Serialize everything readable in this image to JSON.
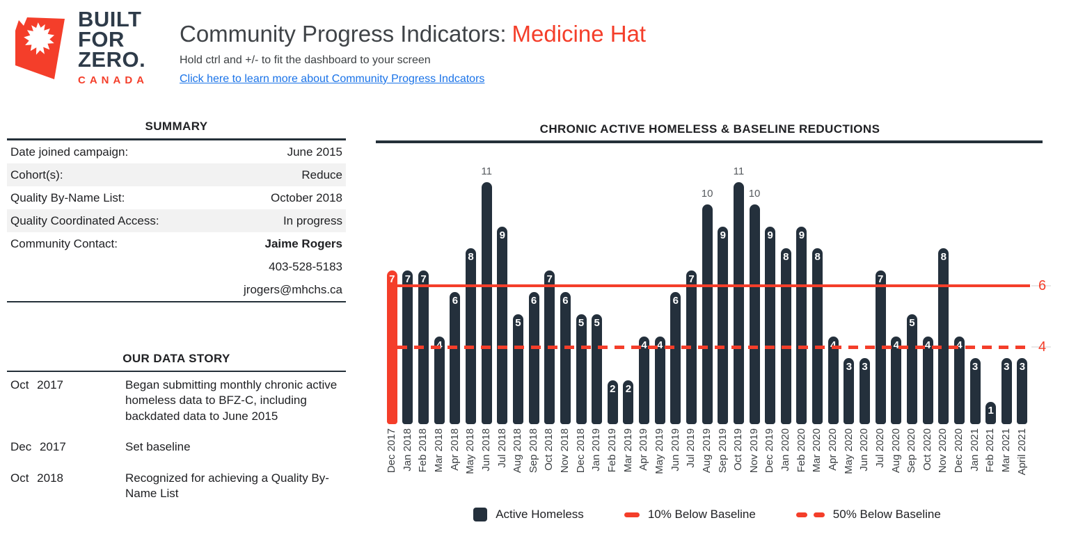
{
  "colors": {
    "accent_red": "#f43e2a",
    "bar_navy": "#24303c",
    "link_blue": "#1a73e8"
  },
  "header": {
    "logo_line1": "BUILT",
    "logo_line2": "FOR",
    "logo_line3": "ZERO.",
    "logo_country": "CANADA",
    "title_prefix": "Community Progress Indicators:",
    "title_community": "Medicine Hat",
    "subtitle": "Hold ctrl and +/- to fit the dashboard to your screen",
    "link_text": "Click here to learn more about Community Progress Indcators"
  },
  "summary": {
    "heading": "SUMMARY",
    "rows": [
      {
        "label": "Date joined campaign:",
        "value": "June 2015",
        "shaded": false,
        "bold": false
      },
      {
        "label": "Cohort(s):",
        "value": "Reduce",
        "shaded": true,
        "bold": false
      },
      {
        "label": "Quality By-Name List:",
        "value": "October 2018",
        "shaded": false,
        "bold": false
      },
      {
        "label": "Quality Coordinated Access:",
        "value": "In progress",
        "shaded": true,
        "bold": false
      },
      {
        "label": "Community Contact:",
        "value": "Jaime Rogers",
        "shaded": false,
        "bold": true
      },
      {
        "label": "",
        "value": "403-528-5183",
        "shaded": false,
        "bold": false
      },
      {
        "label": "",
        "value": "jrogers@mhchs.ca",
        "shaded": false,
        "bold": false
      }
    ]
  },
  "data_story": {
    "heading": "OUR DATA STORY",
    "entries": [
      {
        "date": "Oct 2017",
        "text": "Began submitting monthly chronic active homeless data to BFZ-C, including backdated data to June 2015"
      },
      {
        "date": "Dec 2017",
        "text": "Set baseline"
      },
      {
        "date": "Oct 2018",
        "text": "Recognized for achieving a Quality By-Name List"
      }
    ]
  },
  "chart_data": {
    "type": "bar",
    "title": "CHRONIC ACTIVE HOMELESS & BASELINE REDUCTIONS",
    "categories": [
      "Dec 2017",
      "Jan 2018",
      "Feb 2018",
      "Mar 2018",
      "Apr 2018",
      "May 2018",
      "Jun 2018",
      "Jul 2018",
      "Aug 2018",
      "Sep 2018",
      "Oct 2018",
      "Nov 2018",
      "Dec 2018",
      "Jan 2019",
      "Feb 2019",
      "Mar 2019",
      "Apr 2019",
      "May 2019",
      "Jun 2019",
      "Jul 2019",
      "Aug 2019",
      "Sep 2019",
      "Oct 2019",
      "Nov 2019",
      "Dec 2019",
      "Jan 2020",
      "Feb 2020",
      "Mar 2020",
      "Apr 2020",
      "May 2020",
      "Jun 2020",
      "Jul 2020",
      "Aug 2020",
      "Sep 2020",
      "Oct 2020",
      "Nov 2020",
      "Dec 2020",
      "Jan 2021",
      "Feb 2021",
      "Mar 2021",
      "April 2021"
    ],
    "series": [
      {
        "name": "Active Homeless",
        "values": [
          7,
          7,
          7,
          4,
          6,
          8,
          11,
          9,
          5,
          6,
          7,
          6,
          5,
          5,
          2,
          2,
          4,
          4,
          6,
          7,
          10,
          9,
          11,
          10,
          9,
          8,
          9,
          8,
          4,
          3,
          3,
          7,
          4,
          5,
          4,
          8,
          4,
          3,
          1,
          3,
          3
        ]
      }
    ],
    "baseline": {
      "index": 0,
      "value": 7,
      "note": "baseline month bar shown in red"
    },
    "reference_lines": [
      {
        "name": "10% Below Baseline",
        "style": "solid",
        "value": 6.3,
        "end_label": "6"
      },
      {
        "name": "50% Below Baseline",
        "style": "dashed",
        "value": 3.5,
        "end_label": "4"
      }
    ],
    "legend_items": [
      {
        "label": "Active Homeless",
        "marker": "square"
      },
      {
        "label": "10% Below Baseline",
        "marker": "solid-dash"
      },
      {
        "label": "50% Below Baseline",
        "marker": "double-dash"
      }
    ],
    "ylim": [
      0,
      12
    ],
    "grid": false,
    "legend_position": "bottom"
  }
}
